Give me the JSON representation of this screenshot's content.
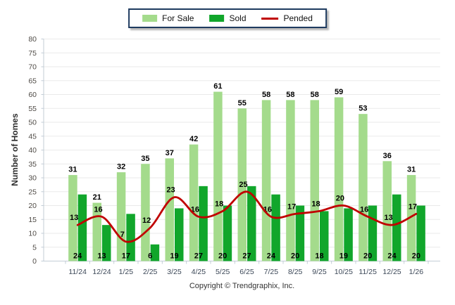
{
  "legend": {
    "items": [
      {
        "label": "For Sale",
        "swatch": "rect",
        "color": "#A4DB8C"
      },
      {
        "label": "Sold",
        "swatch": "rect",
        "color": "#11A62B"
      },
      {
        "label": "Pended",
        "swatch": "line",
        "color": "#C00000"
      }
    ]
  },
  "footer": {
    "copyright": "Copyright © Trendgraphix, Inc."
  },
  "chart_data": {
    "type": "bar",
    "subtype": "grouped-bars-with-line-overlay",
    "title": "",
    "xlabel": "",
    "ylabel": "Number of Homes",
    "categories": [
      "11/24",
      "12/24",
      "1/25",
      "2/25",
      "3/25",
      "4/25",
      "5/25",
      "6/25",
      "7/25",
      "8/25",
      "9/25",
      "10/25",
      "11/25",
      "12/25",
      "1/26"
    ],
    "series": [
      {
        "name": "For Sale",
        "type": "bar",
        "color": "#A4DB8C",
        "values": [
          31,
          21,
          32,
          35,
          37,
          42,
          61,
          55,
          58,
          58,
          58,
          59,
          53,
          36,
          31
        ]
      },
      {
        "name": "Sold",
        "type": "bar",
        "color": "#11A62B",
        "values": [
          24,
          13,
          17,
          6,
          19,
          27,
          20,
          27,
          24,
          20,
          18,
          19,
          20,
          24,
          20
        ]
      },
      {
        "name": "Pended",
        "type": "line",
        "color": "#C00000",
        "values": [
          13,
          16,
          7,
          12,
          23,
          16,
          18,
          25,
          16,
          17,
          18,
          20,
          16,
          13,
          17
        ]
      }
    ],
    "ylim": [
      0,
      80
    ],
    "ytick_step": 5,
    "grid": true,
    "value_labels": true,
    "legend_position": "top-center"
  },
  "colors": {
    "grid": "#EAEAEA",
    "axis": "#C3CDD6",
    "tick_text": "#4F4B46",
    "category_text": "#3C4858",
    "value_text": "#000000",
    "legend_border": "#1E3A5F"
  }
}
